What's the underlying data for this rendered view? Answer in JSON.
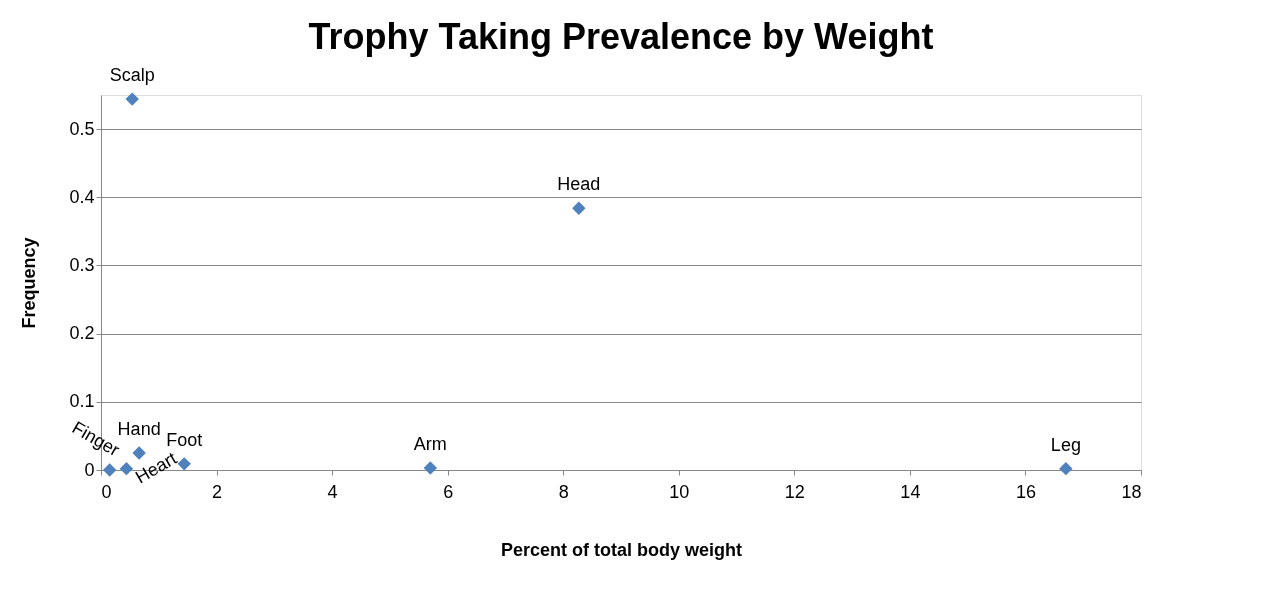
{
  "chart_data": {
    "type": "scatter",
    "title": "Trophy Taking Prevalence by Weight",
    "xlabel": "Percent of total body weight",
    "ylabel": "Frequency",
    "x": [
      0.54,
      8.27,
      0.15,
      0.44,
      0.66,
      1.44,
      5.7,
      16.7
    ],
    "values": [
      0.544,
      0.384,
      0.0,
      0.002,
      0.025,
      0.009,
      0.003,
      0.002
    ],
    "color": "#4f81bd",
    "marker": "diamond",
    "grid": "y",
    "xlim": [
      0,
      18
    ],
    "xticks": [
      0,
      2,
      4,
      6,
      8,
      10,
      12,
      14,
      16,
      18
    ],
    "ylim": [
      0,
      0.55
    ],
    "yticks": [
      0,
      0.1,
      0.2,
      0.3,
      0.4,
      0.5
    ],
    "annotations": [
      {
        "text": "Scalp",
        "x": 0.54,
        "y": 0.544
      },
      {
        "text": "Head",
        "x": 8.27,
        "y": 0.384
      },
      {
        "text": "Finger",
        "x": 0.15,
        "y": 0.0
      },
      {
        "text": "Heart",
        "x": 0.44,
        "y": 0.002
      },
      {
        "text": "Hand",
        "x": 0.66,
        "y": 0.025
      },
      {
        "text": "Foot",
        "x": 1.44,
        "y": 0.009
      },
      {
        "text": "Arm",
        "x": 5.7,
        "y": 0.003
      },
      {
        "text": "Leg",
        "x": 16.7,
        "y": 0.002
      }
    ]
  }
}
